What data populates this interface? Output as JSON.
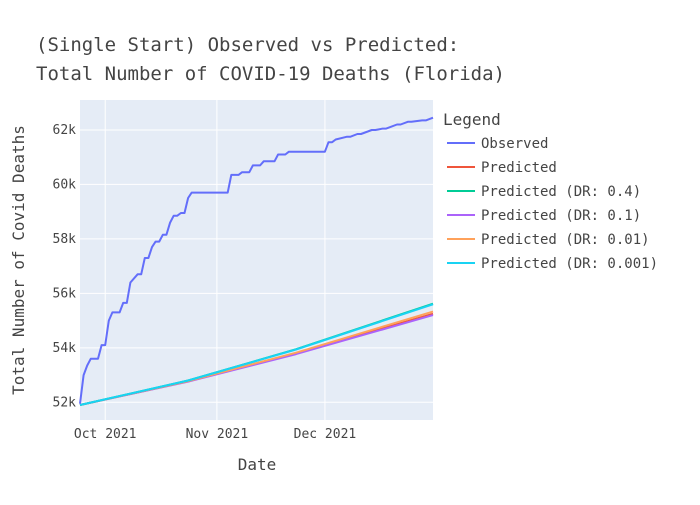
{
  "chart_data": {
    "type": "line",
    "title_line1": "(Single Start) Observed vs Predicted:",
    "title_line2": "Total Number of COVID-19 Deaths (Florida)",
    "xlabel": "Date",
    "ylabel": "Total Number of Covid Deaths",
    "xlim": [
      "2021-09-24",
      "2021-12-31"
    ],
    "ylim": [
      51350,
      63100
    ],
    "x_ticks": [
      {
        "date": "2021-10-01",
        "label": "Oct 2021"
      },
      {
        "date": "2021-11-01",
        "label": "Nov 2021"
      },
      {
        "date": "2021-12-01",
        "label": "Dec 2021"
      }
    ],
    "y_ticks": [
      {
        "value": 52000,
        "label": "52k"
      },
      {
        "value": 54000,
        "label": "54k"
      },
      {
        "value": 56000,
        "label": "56k"
      },
      {
        "value": 58000,
        "label": "58k"
      },
      {
        "value": 60000,
        "label": "60k"
      },
      {
        "value": 62000,
        "label": "62k"
      }
    ],
    "legend": {
      "title": "Legend",
      "placement": "right"
    },
    "background": "#e5ecf6",
    "grid": true,
    "series": [
      {
        "name": "Observed",
        "color": "#636efa",
        "x": [
          "2021-09-24",
          "2021-09-25",
          "2021-09-26",
          "2021-09-27",
          "2021-09-29",
          "2021-09-30",
          "2021-10-01",
          "2021-10-02",
          "2021-10-03",
          "2021-10-05",
          "2021-10-06",
          "2021-10-07",
          "2021-10-08",
          "2021-10-10",
          "2021-10-11",
          "2021-10-12",
          "2021-10-13",
          "2021-10-14",
          "2021-10-15",
          "2021-10-16",
          "2021-10-17",
          "2021-10-18",
          "2021-10-19",
          "2021-10-20",
          "2021-10-21",
          "2021-10-22",
          "2021-10-23",
          "2021-10-24",
          "2021-10-25",
          "2021-10-27",
          "2021-10-28",
          "2021-11-04",
          "2021-11-05",
          "2021-11-07",
          "2021-11-08",
          "2021-11-10",
          "2021-11-11",
          "2021-11-13",
          "2021-11-14",
          "2021-11-17",
          "2021-11-18",
          "2021-11-20",
          "2021-11-21",
          "2021-11-23",
          "2021-11-24",
          "2021-12-01",
          "2021-12-02",
          "2021-12-03",
          "2021-12-04",
          "2021-12-07",
          "2021-12-08",
          "2021-12-10",
          "2021-12-11",
          "2021-12-14",
          "2021-12-15",
          "2021-12-17",
          "2021-12-18",
          "2021-12-21",
          "2021-12-22",
          "2021-12-24",
          "2021-12-25",
          "2021-12-28",
          "2021-12-29",
          "2021-12-30",
          "2021-12-31"
        ],
        "y": [
          51950,
          53000,
          53350,
          53600,
          53600,
          54100,
          54100,
          55000,
          55300,
          55300,
          55650,
          55650,
          56400,
          56700,
          56700,
          57300,
          57300,
          57700,
          57900,
          57900,
          58150,
          58150,
          58600,
          58850,
          58850,
          58950,
          58950,
          59500,
          59700,
          59700,
          59700,
          59700,
          60350,
          60350,
          60450,
          60450,
          60700,
          60700,
          60850,
          60850,
          61100,
          61100,
          61200,
          61200,
          61200,
          61200,
          61550,
          61550,
          61650,
          61750,
          61750,
          61850,
          61850,
          62000,
          62000,
          62050,
          62050,
          62200,
          62200,
          62300,
          62300,
          62350,
          62350,
          62400,
          62450
        ]
      },
      {
        "name": "Predicted",
        "color": "#ef553b",
        "x": [
          "2021-09-24",
          "2021-10-24",
          "2021-11-23",
          "2021-12-31"
        ],
        "y": [
          51900,
          52770,
          53790,
          55250
        ]
      },
      {
        "name": "Predicted (DR: 0.4)",
        "color": "#00cc96",
        "x": [
          "2021-09-24",
          "2021-10-24",
          "2021-11-23",
          "2021-12-31"
        ],
        "y": [
          51900,
          52800,
          53950,
          55620
        ]
      },
      {
        "name": "Predicted (DR: 0.1)",
        "color": "#ab63fa",
        "x": [
          "2021-09-24",
          "2021-10-24",
          "2021-11-23",
          "2021-12-31"
        ],
        "y": [
          51900,
          52760,
          53770,
          55200
        ]
      },
      {
        "name": "Predicted (DR: 0.01)",
        "color": "#ffa15a",
        "x": [
          "2021-09-24",
          "2021-10-24",
          "2021-11-23",
          "2021-12-31"
        ],
        "y": [
          51900,
          52780,
          53820,
          55330
        ]
      },
      {
        "name": "Predicted (DR: 0.001)",
        "color": "#19d3f3",
        "x": [
          "2021-09-24",
          "2021-10-24",
          "2021-11-23",
          "2021-12-31"
        ],
        "y": [
          51900,
          52800,
          53940,
          55600
        ]
      }
    ]
  }
}
